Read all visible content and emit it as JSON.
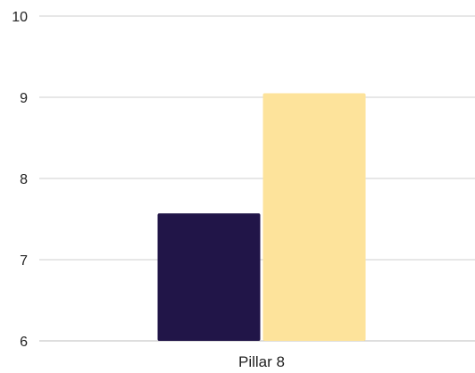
{
  "chart_data": {
    "type": "bar",
    "categories": [
      "Pillar 8"
    ],
    "series": [
      {
        "values": [
          7.57
        ],
        "color": "#211548"
      },
      {
        "values": [
          9.05
        ],
        "color": "#fde39b"
      }
    ],
    "yticks": [
      "6",
      "7",
      "8",
      "9",
      "10"
    ],
    "ylim": [
      6,
      10
    ],
    "grid": true,
    "legend": "none",
    "title": "",
    "xlabel": "",
    "ylabel": ""
  }
}
